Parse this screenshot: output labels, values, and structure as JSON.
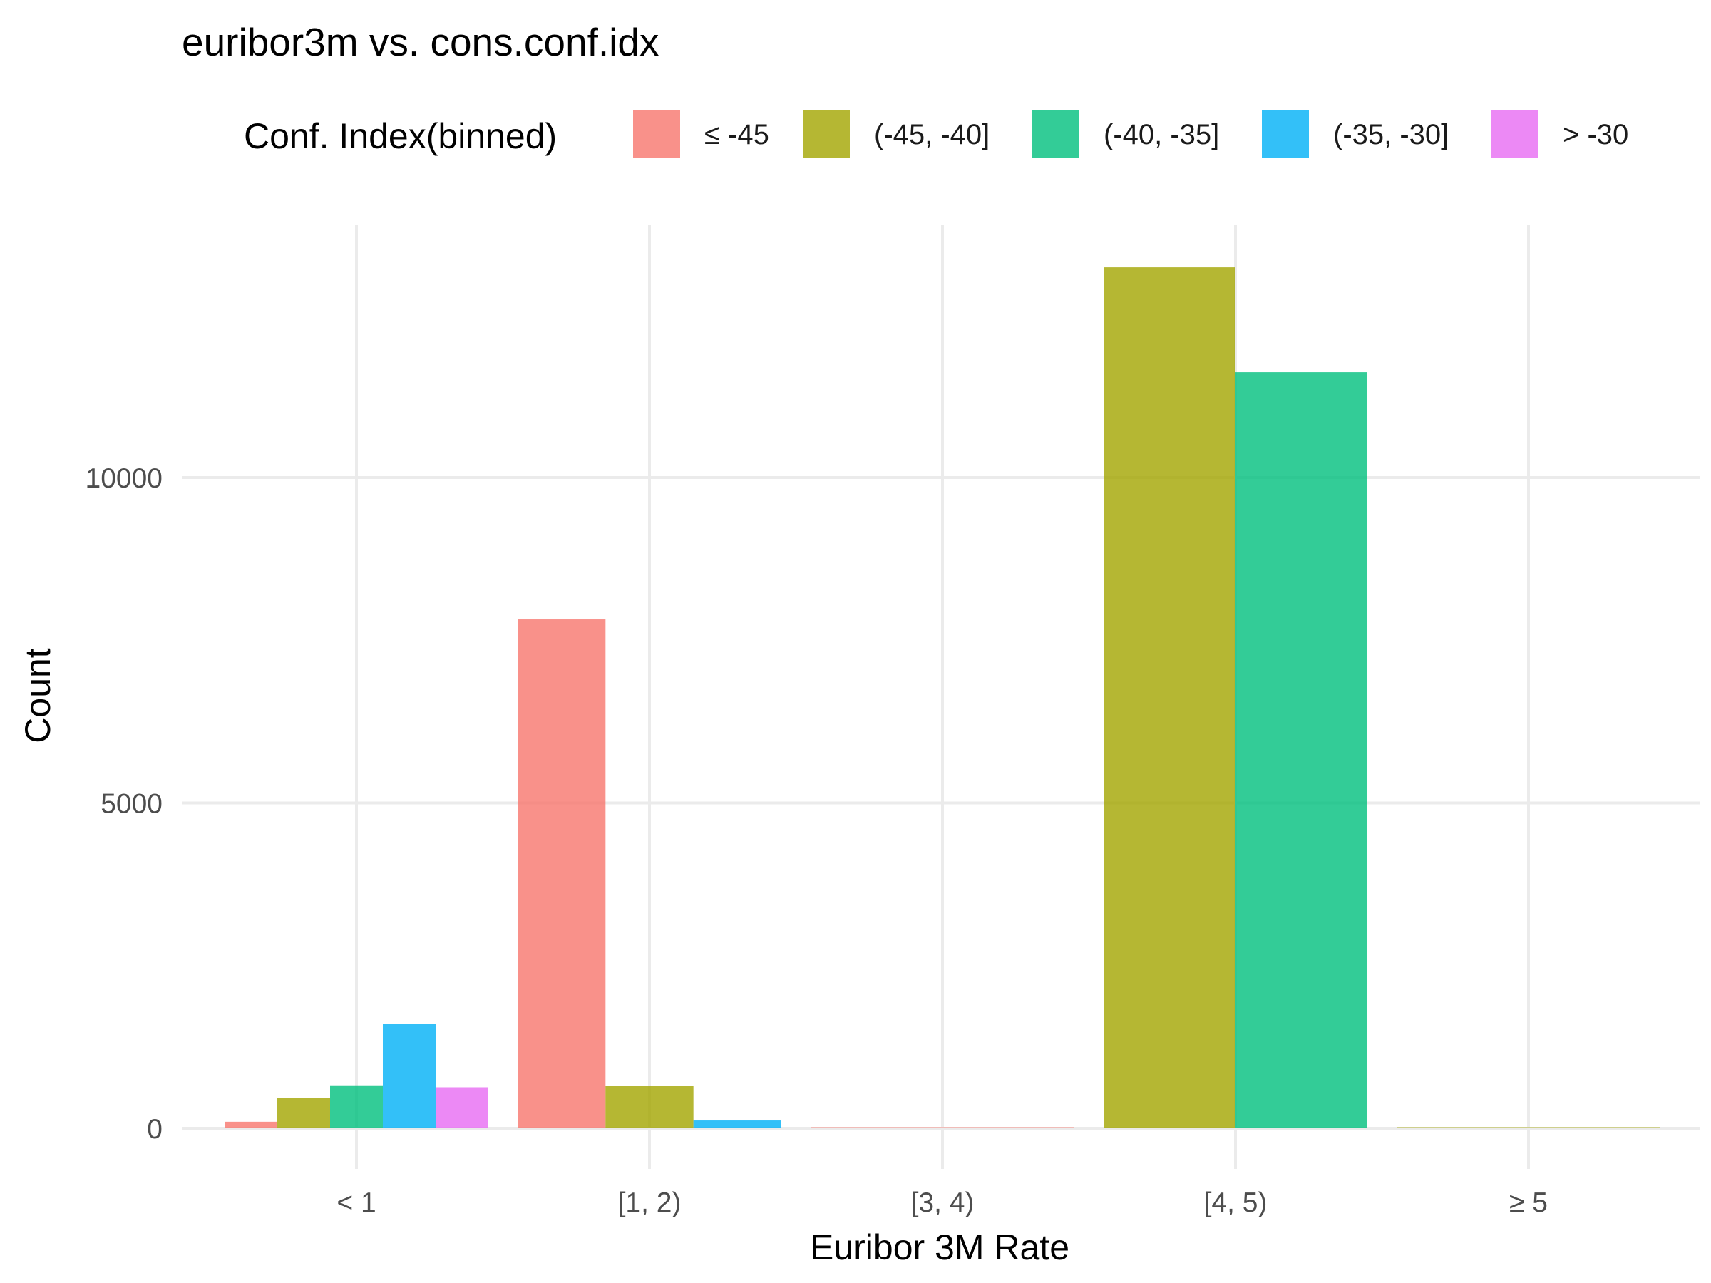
{
  "chart_data": {
    "type": "bar",
    "title": "euribor3m vs. cons.conf.idx",
    "xlabel": "Euribor 3M Rate",
    "ylabel": "Count",
    "legend_title": "Conf. Index(binned)",
    "legend_position": "top",
    "grid": true,
    "ylim": [
      -600,
      14000
    ],
    "yticks": [
      0,
      5000,
      10000
    ],
    "ytick_labels": [
      "0",
      "5000",
      "10000"
    ],
    "categories": [
      "< 1",
      "[1, 2)",
      "[3, 4)",
      "[4, 5)",
      "≥ 5"
    ],
    "series": [
      {
        "name": "≤ -45",
        "color": "#F8766D",
        "values": [
          {
            "x": "< 1",
            "y": 100
          },
          {
            "x": "[1, 2)",
            "y": 7820
          },
          {
            "x": "[3, 4)",
            "y": 10
          }
        ]
      },
      {
        "name": "(-45, -40]",
        "color": "#A3A500",
        "values": [
          {
            "x": "< 1",
            "y": 470
          },
          {
            "x": "[1, 2)",
            "y": 650
          },
          {
            "x": "[4, 5)",
            "y": 13230
          },
          {
            "x": "≥ 5",
            "y": 8
          }
        ]
      },
      {
        "name": "(-40, -35]",
        "color": "#00BF7D",
        "values": [
          {
            "x": "< 1",
            "y": 660
          },
          {
            "x": "[4, 5)",
            "y": 11620
          }
        ]
      },
      {
        "name": "(-35, -30]",
        "color": "#00B0F6",
        "values": [
          {
            "x": "< 1",
            "y": 1600
          },
          {
            "x": "[1, 2)",
            "y": 120
          }
        ]
      },
      {
        "name": "> -30",
        "color": "#E76BF3",
        "values": [
          {
            "x": "< 1",
            "y": 630
          }
        ]
      }
    ]
  }
}
